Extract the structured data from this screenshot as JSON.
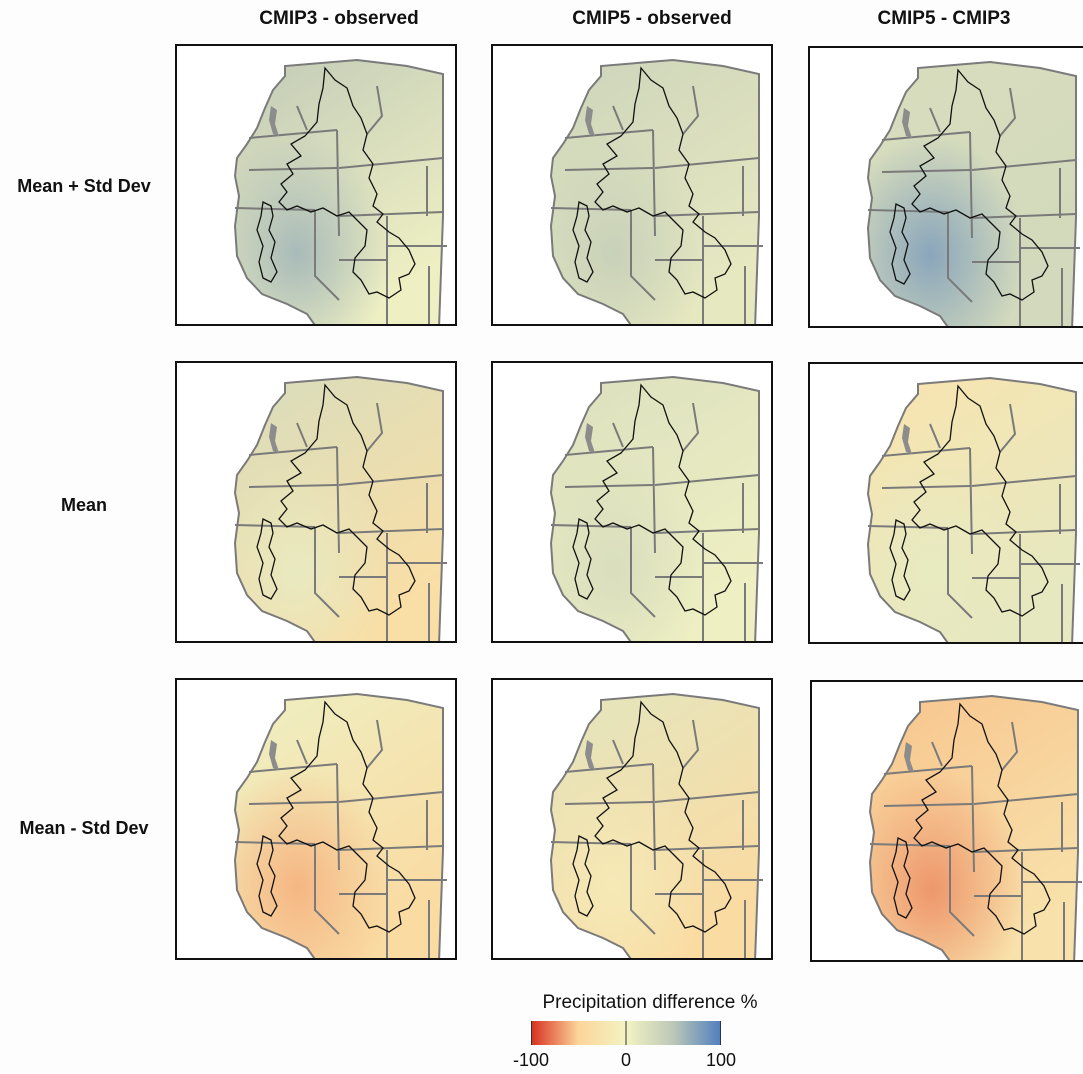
{
  "columns": [
    "CMIP3 - observed",
    "CMIP5 - observed",
    "CMIP5 - CMIP3"
  ],
  "rows": [
    "Mean + Std Dev",
    "Mean",
    "Mean - Std Dev"
  ],
  "legend": {
    "title": "Precipitation difference %",
    "ticks": [
      "-100",
      "0",
      "100"
    ],
    "range": [
      -100,
      100
    ],
    "colors": {
      "low": "#d7301f",
      "mid_low": "#fcd59a",
      "zero": "#f3f3c3",
      "mid_high": "#bcc7b7",
      "high": "#4f7fbf"
    }
  },
  "panels": [
    {
      "row": "Mean + Std Dev",
      "column": "CMIP3 - observed",
      "tone_north": 45,
      "tone_south_west": 60,
      "tone_south_east": 5
    },
    {
      "row": "Mean + Std Dev",
      "column": "CMIP5 - observed",
      "tone_north": 35,
      "tone_south_west": 40,
      "tone_south_east": 12
    },
    {
      "row": "Mean + Std Dev",
      "column": "CMIP5 - CMIP3",
      "tone_north": 25,
      "tone_south_west": 75,
      "tone_south_east": 30
    },
    {
      "row": "Mean",
      "column": "CMIP3 - observed",
      "tone_north": 25,
      "tone_south_west": 10,
      "tone_south_east": -35
    },
    {
      "row": "Mean",
      "column": "CMIP5 - observed",
      "tone_north": 22,
      "tone_south_west": 25,
      "tone_south_east": 5
    },
    {
      "row": "Mean",
      "column": "CMIP5 - CMIP3",
      "tone_north": -25,
      "tone_south_west": 10,
      "tone_south_east": 12
    },
    {
      "row": "Mean - Std Dev",
      "column": "CMIP3 - observed",
      "tone_north": 5,
      "tone_south_west": -60,
      "tone_south_east": -40
    },
    {
      "row": "Mean - Std Dev",
      "column": "CMIP5 - observed",
      "tone_north": 15,
      "tone_south_west": -15,
      "tone_south_east": -40
    },
    {
      "row": "Mean - Std Dev",
      "column": "CMIP5 - CMIP3",
      "tone_north": -55,
      "tone_south_west": -70,
      "tone_south_east": -30
    }
  ]
}
